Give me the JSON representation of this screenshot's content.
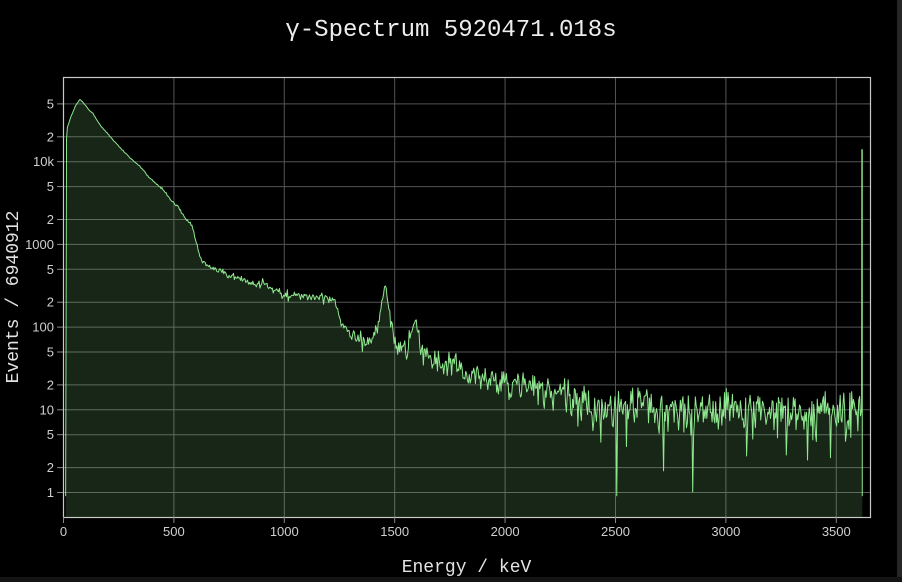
{
  "title": "γ-Spectrum 5920471.018s",
  "chart_data": {
    "type": "area",
    "subtype": "log-histogram-spectrum",
    "title": "γ-Spectrum 5920471.018s",
    "xlabel": "Energy / keV",
    "ylabel": "Events / 6940912",
    "total_events": "6940912",
    "live_time_s": "5920471.018",
    "x_range": [
      0,
      3655
    ],
    "y_scale": "log",
    "y_range": [
      0.5,
      105000
    ],
    "grid": true,
    "legend": "none",
    "x_ticks": [
      {
        "v": 0,
        "label": "0"
      },
      {
        "v": 500,
        "label": "500"
      },
      {
        "v": 1000,
        "label": "1000"
      },
      {
        "v": 1500,
        "label": "1500"
      },
      {
        "v": 2000,
        "label": "2000"
      },
      {
        "v": 2500,
        "label": "2500"
      },
      {
        "v": 3000,
        "label": "3000"
      },
      {
        "v": 3500,
        "label": "3500"
      }
    ],
    "y_ticks": [
      {
        "v": 1,
        "label": "1"
      },
      {
        "v": 2,
        "label": "2"
      },
      {
        "v": 5,
        "label": "5"
      },
      {
        "v": 10,
        "label": "10"
      },
      {
        "v": 20,
        "label": "2"
      },
      {
        "v": 50,
        "label": "5"
      },
      {
        "v": 100,
        "label": "100"
      },
      {
        "v": 200,
        "label": "2"
      },
      {
        "v": 500,
        "label": "5"
      },
      {
        "v": 1000,
        "label": "1000"
      },
      {
        "v": 2000,
        "label": "2"
      },
      {
        "v": 5000,
        "label": "5"
      },
      {
        "v": 10000,
        "label": "10k"
      },
      {
        "v": 20000,
        "label": "2"
      },
      {
        "v": 50000,
        "label": "5"
      }
    ],
    "colors": {
      "background": "#000000",
      "line": "#8fe88f",
      "fill": "rgba(144,238,144,0.16)",
      "grid": "#545454",
      "axis_border": "#c9c9c9",
      "tick_mark": "#8a8a8a",
      "title_text": "#ededed",
      "tick_text": "#cfcfcf"
    },
    "bin_width_kev": 4,
    "envelope_points": [
      [
        12,
        0.8
      ],
      [
        14,
        16000
      ],
      [
        20,
        26000
      ],
      [
        35,
        34000
      ],
      [
        55,
        46000
      ],
      [
        77,
        56000
      ],
      [
        95,
        50000
      ],
      [
        120,
        41000
      ],
      [
        135,
        38000
      ],
      [
        165,
        28000
      ],
      [
        213,
        20000
      ],
      [
        240,
        16500
      ],
      [
        288,
        12000
      ],
      [
        334,
        9400
      ],
      [
        360,
        8000
      ],
      [
        394,
        6200
      ],
      [
        420,
        5400
      ],
      [
        454,
        4500
      ],
      [
        490,
        3400
      ],
      [
        530,
        2600
      ],
      [
        560,
        1900
      ],
      [
        583,
        1750
      ],
      [
        600,
        1100
      ],
      [
        609,
        950
      ],
      [
        625,
        640
      ],
      [
        660,
        520
      ],
      [
        700,
        480
      ],
      [
        750,
        420
      ],
      [
        800,
        380
      ],
      [
        850,
        330
      ],
      [
        890,
        320
      ],
      [
        911,
        360
      ],
      [
        935,
        280
      ],
      [
        969,
        300
      ],
      [
        1000,
        240
      ],
      [
        1060,
        235
      ],
      [
        1120,
        230
      ],
      [
        1180,
        225
      ],
      [
        1230,
        215
      ],
      [
        1245,
        160
      ],
      [
        1260,
        110
      ],
      [
        1290,
        95
      ],
      [
        1330,
        75
      ],
      [
        1370,
        68
      ],
      [
        1400,
        72
      ],
      [
        1425,
        95
      ],
      [
        1442,
        170
      ],
      [
        1458,
        350
      ],
      [
        1470,
        230
      ],
      [
        1485,
        110
      ],
      [
        1505,
        62
      ],
      [
        1530,
        50
      ],
      [
        1560,
        58
      ],
      [
        1578,
        80
      ],
      [
        1594,
        126
      ],
      [
        1610,
        70
      ],
      [
        1630,
        46
      ],
      [
        1680,
        40
      ],
      [
        1730,
        36
      ],
      [
        1764,
        40
      ],
      [
        1800,
        28
      ],
      [
        1860,
        26
      ],
      [
        1930,
        23
      ],
      [
        2000,
        21
      ],
      [
        2100,
        19
      ],
      [
        2200,
        17
      ],
      [
        2300,
        14
      ],
      [
        2400,
        11
      ],
      [
        2500,
        10
      ],
      [
        2620,
        11
      ],
      [
        2700,
        9.5
      ],
      [
        2850,
        9
      ],
      [
        3000,
        9.5
      ],
      [
        3150,
        9
      ],
      [
        3300,
        9.5
      ],
      [
        3450,
        9
      ],
      [
        3580,
        10
      ],
      [
        3614,
        10
      ]
    ],
    "peaks": [
      {
        "energy": 1458,
        "counts": 350,
        "note": "photopeak"
      },
      {
        "energy": 1594,
        "counts": 126,
        "note": "photopeak"
      }
    ],
    "compton_edge_kev": 1240,
    "overflow_bin": {
      "energy": 3618,
      "counts": 13800
    },
    "forced_dips": [
      [
        2720,
        1.8
      ],
      [
        2852,
        1.0
      ]
    ],
    "noise": {
      "model": "poisson",
      "seed": 42
    }
  }
}
